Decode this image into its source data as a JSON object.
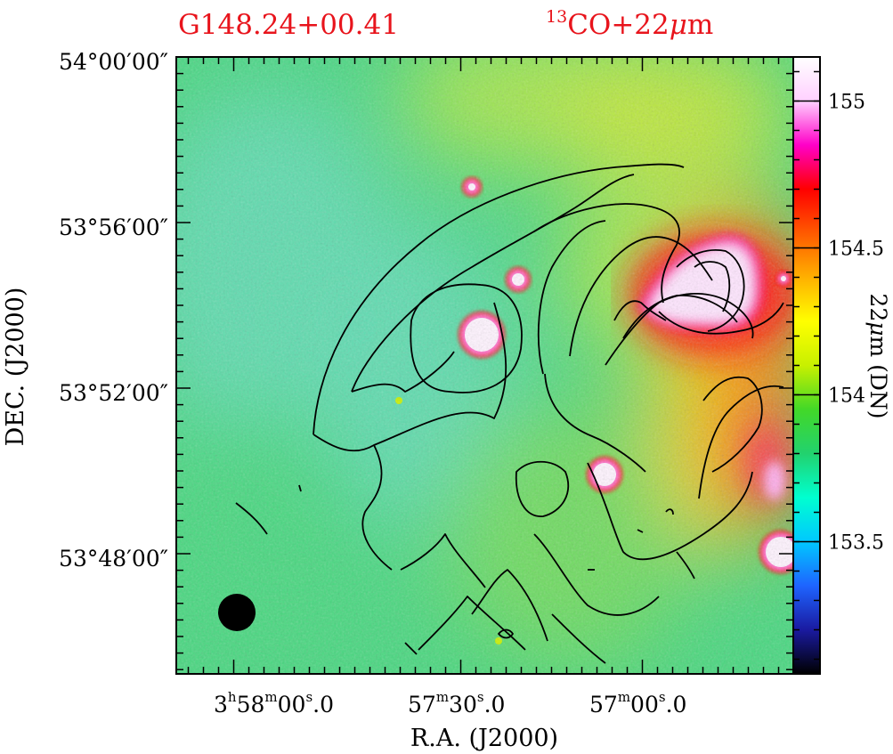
{
  "chart_data": {
    "type": "heatmap",
    "title_left": "G148.24+00.41",
    "title_right_sup": "13",
    "title_right_main": "CO+22",
    "title_right_unit": "m",
    "title_color": "#e8141c",
    "xlabel": "R.A. (J2000)",
    "ylabel": "DEC. (J2000)",
    "x_ticks": [
      {
        "h": "3",
        "m": "58",
        "s": "00",
        "frac": "0"
      },
      {
        "h": "",
        "m": "57",
        "s": "30",
        "frac": "0"
      },
      {
        "h": "",
        "m": "57",
        "s": "00",
        "frac": "0"
      }
    ],
    "y_ticks": [
      "54°00′00″",
      "53°56′00″",
      "53°52′00″",
      "53°48′00″"
    ],
    "colorbar": {
      "label_main": "22",
      "label_unit": "m (DN)",
      "range": [
        153.05,
        155.15
      ],
      "ticks": [
        "155",
        "154.5",
        "154",
        "153.5"
      ],
      "tick_values": [
        155,
        154.5,
        154,
        153.5
      ],
      "colors": [
        "#000000",
        "#1a1aa0",
        "#1e64ff",
        "#00c8ff",
        "#00ffd0",
        "#22d26e",
        "#42d828",
        "#c8f000",
        "#ffff00",
        "#ffb000",
        "#ff5a00",
        "#ff0000",
        "#ff00c8",
        "#ffd0ff",
        "#ffffff"
      ]
    },
    "background_colors": [
      "#62dcb4",
      "#48d880",
      "#74dc5c",
      "#b0e848",
      "#c8e838",
      "#ffd000",
      "#ff6a10",
      "#ff2020"
    ],
    "contours_color": "#000000",
    "beam_color": "#000000",
    "grid": false
  }
}
